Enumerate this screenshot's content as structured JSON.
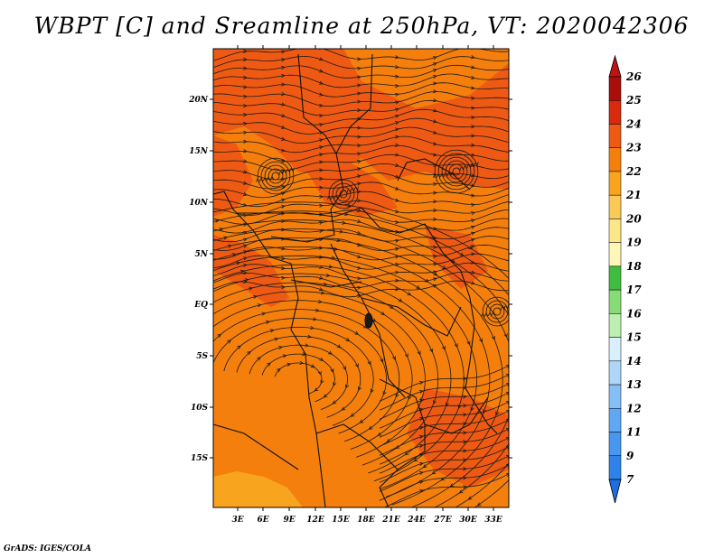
{
  "title": "WBPT [C] and Sreamline at 250hPa, VT: 2020042306",
  "credit": "GrADS: IGES/COLA",
  "map": {
    "lat_labels": [
      "20N",
      "15N",
      "10N",
      "5N",
      "EQ",
      "5S",
      "10S",
      "15S"
    ],
    "lon_labels": [
      "3E",
      "6E",
      "9E",
      "12E",
      "15E",
      "18E",
      "21E",
      "24E",
      "27E",
      "30E",
      "33E"
    ]
  },
  "colorbar": {
    "levels": [
      "7",
      "9",
      "11",
      "12",
      "13",
      "14",
      "15",
      "16",
      "17",
      "18",
      "19",
      "20",
      "21",
      "22",
      "23",
      "24",
      "25",
      "26"
    ],
    "colors": [
      "#1e6ee0",
      "#2f82ea",
      "#4796f0",
      "#61a8f4",
      "#86bef6",
      "#aed6f8",
      "#d9efff",
      "#bdf0b0",
      "#88dc78",
      "#3fbd3f",
      "#fff7b8",
      "#fde58a",
      "#fbca56",
      "#f9a41f",
      "#f57f0c",
      "#ee5a13",
      "#d9290f",
      "#aa0e0a",
      "#c01414"
    ]
  },
  "field_colors": {
    "level_22_23": "#f57f0c",
    "level_23_24": "#ee5a13",
    "level_21_22": "#f9a41f"
  }
}
